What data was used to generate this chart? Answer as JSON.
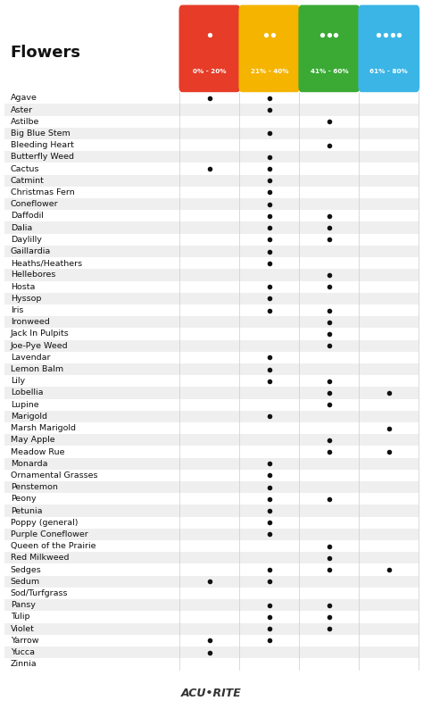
{
  "title": "Flowers",
  "columns": [
    "0% - 20%",
    "21% - 40%",
    "41% - 60%",
    "61% - 80%"
  ],
  "col_colors": [
    "#e63c28",
    "#f5b400",
    "#3aaa35",
    "#3ab5e6"
  ],
  "plants": [
    {
      "name": "Agave",
      "dots": [
        1,
        1,
        0,
        0
      ]
    },
    {
      "name": "Aster",
      "dots": [
        0,
        1,
        0,
        0
      ]
    },
    {
      "name": "Astilbe",
      "dots": [
        0,
        0,
        1,
        0
      ]
    },
    {
      "name": "Big Blue Stem",
      "dots": [
        0,
        1,
        0,
        0
      ]
    },
    {
      "name": "Bleeding Heart",
      "dots": [
        0,
        0,
        1,
        0
      ]
    },
    {
      "name": "Butterfly Weed",
      "dots": [
        0,
        1,
        0,
        0
      ]
    },
    {
      "name": "Cactus",
      "dots": [
        1,
        1,
        0,
        0
      ]
    },
    {
      "name": "Catmint",
      "dots": [
        0,
        1,
        0,
        0
      ]
    },
    {
      "name": "Christmas Fern",
      "dots": [
        0,
        1,
        0,
        0
      ]
    },
    {
      "name": "Coneflower",
      "dots": [
        0,
        1,
        0,
        0
      ]
    },
    {
      "name": "Daffodil",
      "dots": [
        0,
        1,
        1,
        0
      ]
    },
    {
      "name": "Dalia",
      "dots": [
        0,
        1,
        1,
        0
      ]
    },
    {
      "name": "Daylilly",
      "dots": [
        0,
        1,
        1,
        0
      ]
    },
    {
      "name": "Gaillardia",
      "dots": [
        0,
        1,
        0,
        0
      ]
    },
    {
      "name": "Heaths/Heathers",
      "dots": [
        0,
        1,
        0,
        0
      ]
    },
    {
      "name": "Hellebores",
      "dots": [
        0,
        0,
        1,
        0
      ]
    },
    {
      "name": "Hosta",
      "dots": [
        0,
        1,
        1,
        0
      ]
    },
    {
      "name": "Hyssop",
      "dots": [
        0,
        1,
        0,
        0
      ]
    },
    {
      "name": "Iris",
      "dots": [
        0,
        1,
        1,
        0
      ]
    },
    {
      "name": "Ironweed",
      "dots": [
        0,
        0,
        1,
        0
      ]
    },
    {
      "name": "Jack In Pulpits",
      "dots": [
        0,
        0,
        1,
        0
      ]
    },
    {
      "name": "Joe-Pye Weed",
      "dots": [
        0,
        0,
        1,
        0
      ]
    },
    {
      "name": "Lavendar",
      "dots": [
        0,
        1,
        0,
        0
      ]
    },
    {
      "name": "Lemon Balm",
      "dots": [
        0,
        1,
        0,
        0
      ]
    },
    {
      "name": "Lily",
      "dots": [
        0,
        1,
        1,
        0
      ]
    },
    {
      "name": "Lobellia",
      "dots": [
        0,
        0,
        1,
        1
      ]
    },
    {
      "name": "Lupine",
      "dots": [
        0,
        0,
        1,
        0
      ]
    },
    {
      "name": "Marigold",
      "dots": [
        0,
        1,
        0,
        0
      ]
    },
    {
      "name": "Marsh Marigold",
      "dots": [
        0,
        0,
        0,
        1
      ]
    },
    {
      "name": "May Apple",
      "dots": [
        0,
        0,
        1,
        0
      ]
    },
    {
      "name": "Meadow Rue",
      "dots": [
        0,
        0,
        1,
        1
      ]
    },
    {
      "name": "Monarda",
      "dots": [
        0,
        1,
        0,
        0
      ]
    },
    {
      "name": "Ornamental Grasses",
      "dots": [
        0,
        1,
        0,
        0
      ]
    },
    {
      "name": "Penstemon",
      "dots": [
        0,
        1,
        0,
        0
      ]
    },
    {
      "name": "Peony",
      "dots": [
        0,
        1,
        1,
        0
      ]
    },
    {
      "name": "Petunia",
      "dots": [
        0,
        1,
        0,
        0
      ]
    },
    {
      "name": "Poppy (general)",
      "dots": [
        0,
        1,
        0,
        0
      ]
    },
    {
      "name": "Purple Coneflower",
      "dots": [
        0,
        1,
        0,
        0
      ]
    },
    {
      "name": "Queen of the Prairie",
      "dots": [
        0,
        0,
        1,
        0
      ]
    },
    {
      "name": "Red Milkweed",
      "dots": [
        0,
        0,
        1,
        0
      ]
    },
    {
      "name": "Sedges",
      "dots": [
        0,
        1,
        1,
        1
      ]
    },
    {
      "name": "Sedum",
      "dots": [
        1,
        1,
        0,
        0
      ]
    },
    {
      "name": "Sod/Turfgrass",
      "dots": [
        0,
        0,
        0,
        0
      ]
    },
    {
      "name": "Pansy",
      "dots": [
        0,
        1,
        1,
        0
      ]
    },
    {
      "name": "Tulip",
      "dots": [
        0,
        1,
        1,
        0
      ]
    },
    {
      "name": "Violet",
      "dots": [
        0,
        1,
        1,
        0
      ]
    },
    {
      "name": "Yarrow",
      "dots": [
        1,
        1,
        0,
        0
      ]
    },
    {
      "name": "Yucca",
      "dots": [
        1,
        0,
        0,
        0
      ]
    },
    {
      "name": "Zinnia",
      "dots": [
        0,
        0,
        0,
        0
      ]
    }
  ],
  "bg_color": "#ffffff",
  "row_alt_color": "#efefef",
  "row_normal_color": "#ffffff",
  "dot_color": "#111111",
  "brand": "ACU•RITE"
}
